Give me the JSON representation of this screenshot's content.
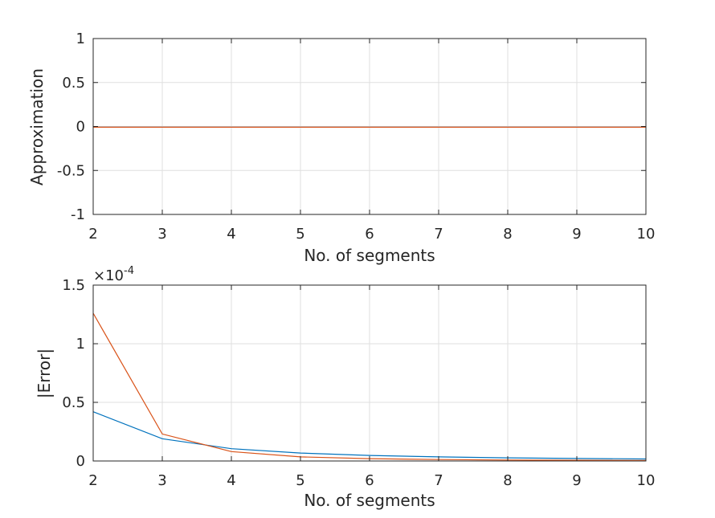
{
  "chart_data": [
    {
      "type": "line",
      "xlabel": "No. of segments",
      "ylabel": "Approximation",
      "xlim": [
        2,
        10
      ],
      "ylim": [
        -1,
        1
      ],
      "xticks": [
        "2",
        "3",
        "4",
        "5",
        "6",
        "7",
        "8",
        "9",
        "10"
      ],
      "yticks": [
        "-1",
        "-0.5",
        "0",
        "0.5",
        "1"
      ],
      "grid": true,
      "x": [
        2,
        3,
        4,
        5,
        6,
        7,
        8,
        9,
        10
      ],
      "series": [
        {
          "color": "#0072bd",
          "values": [
            -0.008,
            -0.008,
            -0.008,
            -0.008,
            -0.008,
            -0.008,
            -0.008,
            -0.008,
            -0.008
          ]
        },
        {
          "color": "#d95319",
          "values": [
            -0.008,
            -0.008,
            -0.008,
            -0.008,
            -0.008,
            -0.008,
            -0.008,
            -0.008,
            -0.008
          ]
        }
      ]
    },
    {
      "type": "line",
      "xlabel": "No. of segments",
      "ylabel": "|Error|",
      "xlim": [
        2,
        10
      ],
      "ylim": [
        0,
        1.5
      ],
      "exponent_base": "×10",
      "exponent_power": "-4",
      "xticks": [
        "2",
        "3",
        "4",
        "5",
        "6",
        "7",
        "8",
        "9",
        "10"
      ],
      "yticks": [
        "0",
        "0.5",
        "1",
        "1.5"
      ],
      "grid": true,
      "x": [
        2,
        3,
        4,
        5,
        6,
        7,
        8,
        9,
        10
      ],
      "series": [
        {
          "color": "#0072bd",
          "values": [
            0.42,
            0.19,
            0.105,
            0.068,
            0.047,
            0.035,
            0.027,
            0.021,
            0.017
          ]
        },
        {
          "color": "#d95319",
          "values": [
            1.26,
            0.23,
            0.08,
            0.035,
            0.02,
            0.012,
            0.008,
            0.006,
            0.004
          ]
        }
      ]
    }
  ]
}
